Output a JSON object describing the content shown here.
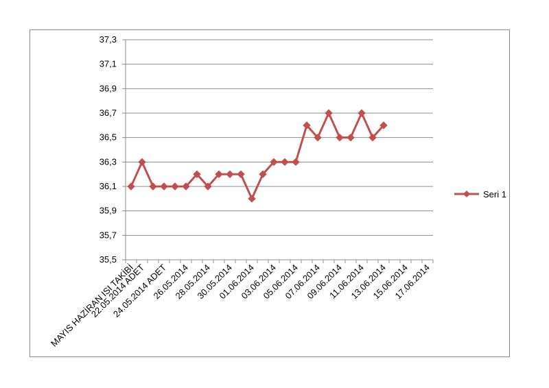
{
  "chart_data": {
    "type": "line",
    "title": "",
    "xlabel": "",
    "ylabel": "",
    "categories": [
      "MAYIS HAZİRAN ISI TAKİBİ",
      "22.05.2014 ADET",
      "",
      "24.05.2014 ADET",
      "",
      "26.05.2014",
      "",
      "28.05.2014",
      "",
      "30.05.2014",
      "",
      "01.06.2014",
      "",
      "03.06.2014",
      "",
      "05.06.2014",
      "",
      "07.06.2014",
      "",
      "09.06.2014",
      "",
      "11.06.2014",
      "",
      "13.06.2014",
      "",
      "15.06.2014",
      "",
      "17.06.2014"
    ],
    "ylim": [
      35.5,
      37.3
    ],
    "yticks": [
      "35,5",
      "35,7",
      "35,9",
      "36,1",
      "36,3",
      "36,5",
      "36,7",
      "36,9",
      "37,1",
      "37,3"
    ],
    "grid": true,
    "legend_position": "right",
    "series": [
      {
        "name": "Seri 1",
        "color": "#c0504d",
        "marker": "diamond",
        "values": [
          36.1,
          36.3,
          36.1,
          36.1,
          36.1,
          36.1,
          36.2,
          36.1,
          36.2,
          36.2,
          36.2,
          36.0,
          36.2,
          36.3,
          36.3,
          36.3,
          36.6,
          36.5,
          36.7,
          36.5,
          36.5,
          36.7,
          36.5,
          36.6,
          null,
          null,
          null,
          null
        ]
      }
    ]
  }
}
